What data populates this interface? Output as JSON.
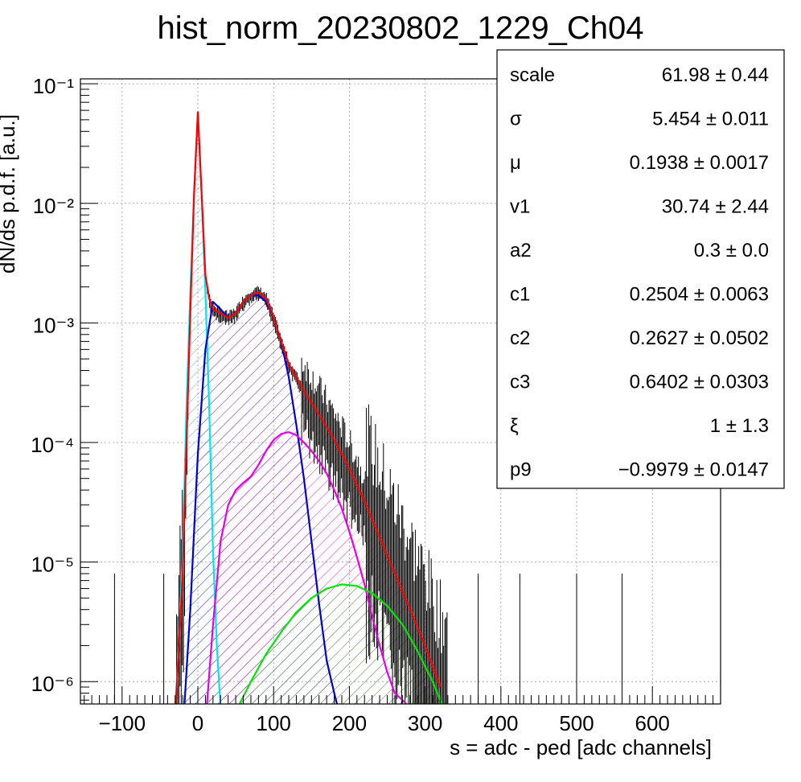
{
  "chart_data": {
    "type": "line",
    "title": "hist_norm_20230802_1229_Ch04",
    "xlabel": "s = adc - ped [adc channels]",
    "ylabel": "dN/ds p.d.f. [a.u.]",
    "xlim": [
      -155,
      690
    ],
    "ylim": [
      6.5e-07,
      0.11
    ],
    "yscale": "log",
    "grid": true,
    "x_ticks": [
      "−100",
      "0",
      "100",
      "200",
      "300",
      "400",
      "500",
      "600"
    ],
    "y_ticks": [
      "10⁻⁶",
      "10⁻⁵",
      "10⁻⁴",
      "10⁻³",
      "10⁻²",
      "10⁻¹"
    ],
    "legend_position": "top-right",
    "stats": [
      {
        "name": "scale",
        "value": "61.98 ± 0.44"
      },
      {
        "name": "σ",
        "value": "5.454 ± 0.011"
      },
      {
        "name": "μ",
        "value": "0.1938 ± 0.0017"
      },
      {
        "name": "v1",
        "value": "30.74 ± 2.44"
      },
      {
        "name": "a2",
        "value": "0.3 ± 0.0"
      },
      {
        "name": "c1",
        "value": "0.2504 ± 0.0063"
      },
      {
        "name": "c2",
        "value": "0.2627 ± 0.0502"
      },
      {
        "name": "c3",
        "value": "0.6402 ± 0.0303"
      },
      {
        "name": "ξ",
        "value": "1 ± 1.3"
      },
      {
        "name": "p9",
        "value": "−0.9979 ± 0.0147"
      }
    ],
    "series": [
      {
        "color": "#ff0000",
        "x": [
          -30,
          -20,
          -10,
          -5,
          0,
          5,
          10,
          15,
          20,
          30,
          40,
          50,
          60,
          70,
          80,
          90,
          100,
          110,
          120,
          140,
          160,
          180,
          200,
          220,
          240,
          260,
          280,
          300,
          320
        ],
        "y": [
          5e-07,
          8e-06,
          0.0012,
          0.012,
          0.058,
          0.012,
          0.0025,
          0.0016,
          0.0013,
          0.0012,
          0.0011,
          0.0012,
          0.0015,
          0.0017,
          0.0018,
          0.0016,
          0.0011,
          0.0007,
          0.00045,
          0.00027,
          0.00017,
          0.000105,
          6e-05,
          3.2e-05,
          1.6e-05,
          8e-06,
          4e-06,
          2e-06,
          9e-07
        ]
      },
      {
        "color": "#00e5ee",
        "x": [
          -30,
          -25,
          -20,
          -15,
          -10,
          -5,
          0,
          5,
          10,
          15,
          20,
          25,
          30
        ],
        "y": [
          6e-07,
          2e-06,
          1.2e-05,
          0.0002,
          0.0018,
          0.012,
          0.058,
          0.012,
          0.0018,
          0.0002,
          1.2e-05,
          2e-06,
          6e-07
        ]
      },
      {
        "color": "#0000cc",
        "x": [
          -18,
          -10,
          0,
          10,
          20,
          30,
          40,
          50,
          60,
          70,
          80,
          90,
          100,
          110,
          120,
          130,
          140,
          150,
          160,
          170,
          180,
          185
        ],
        "y": [
          6e-07,
          4e-06,
          8e-05,
          0.0006,
          0.0015,
          0.0013,
          0.0011,
          0.0012,
          0.0015,
          0.0017,
          0.0017,
          0.0015,
          0.0011,
          0.0007,
          0.00035,
          0.00014,
          5e-05,
          1.5e-05,
          4.5e-06,
          1.5e-06,
          8e-07,
          6e-07
        ]
      },
      {
        "color": "#e600e6",
        "x": [
          12,
          20,
          30,
          40,
          50,
          60,
          70,
          80,
          90,
          100,
          110,
          120,
          130,
          140,
          150,
          160,
          170,
          180,
          190,
          200,
          210,
          220,
          230,
          240,
          250,
          260,
          270,
          275
        ],
        "y": [
          6.5e-07,
          3e-06,
          1.5e-05,
          3e-05,
          4e-05,
          4.6e-05,
          5.2e-05,
          6.5e-05,
          8.5e-05,
          0.000105,
          0.000118,
          0.000122,
          0.000115,
          0.0001,
          8.5e-05,
          7e-05,
          5.5e-05,
          4e-05,
          2.8e-05,
          1.8e-05,
          1.1e-05,
          6.5e-06,
          3.5e-06,
          2e-06,
          1.2e-06,
          8e-07,
          7e-07,
          6.5e-07
        ]
      },
      {
        "color": "#00e600",
        "x": [
          55,
          70,
          90,
          110,
          130,
          150,
          170,
          190,
          210,
          230,
          250,
          270,
          290,
          310,
          322
        ],
        "y": [
          6.5e-07,
          1e-06,
          1.7e-06,
          2.6e-06,
          3.8e-06,
          5e-06,
          6e-06,
          6.5e-06,
          6.3e-06,
          5.5e-06,
          4.3e-06,
          3e-06,
          1.8e-06,
          1e-06,
          6.5e-07
        ]
      }
    ]
  }
}
